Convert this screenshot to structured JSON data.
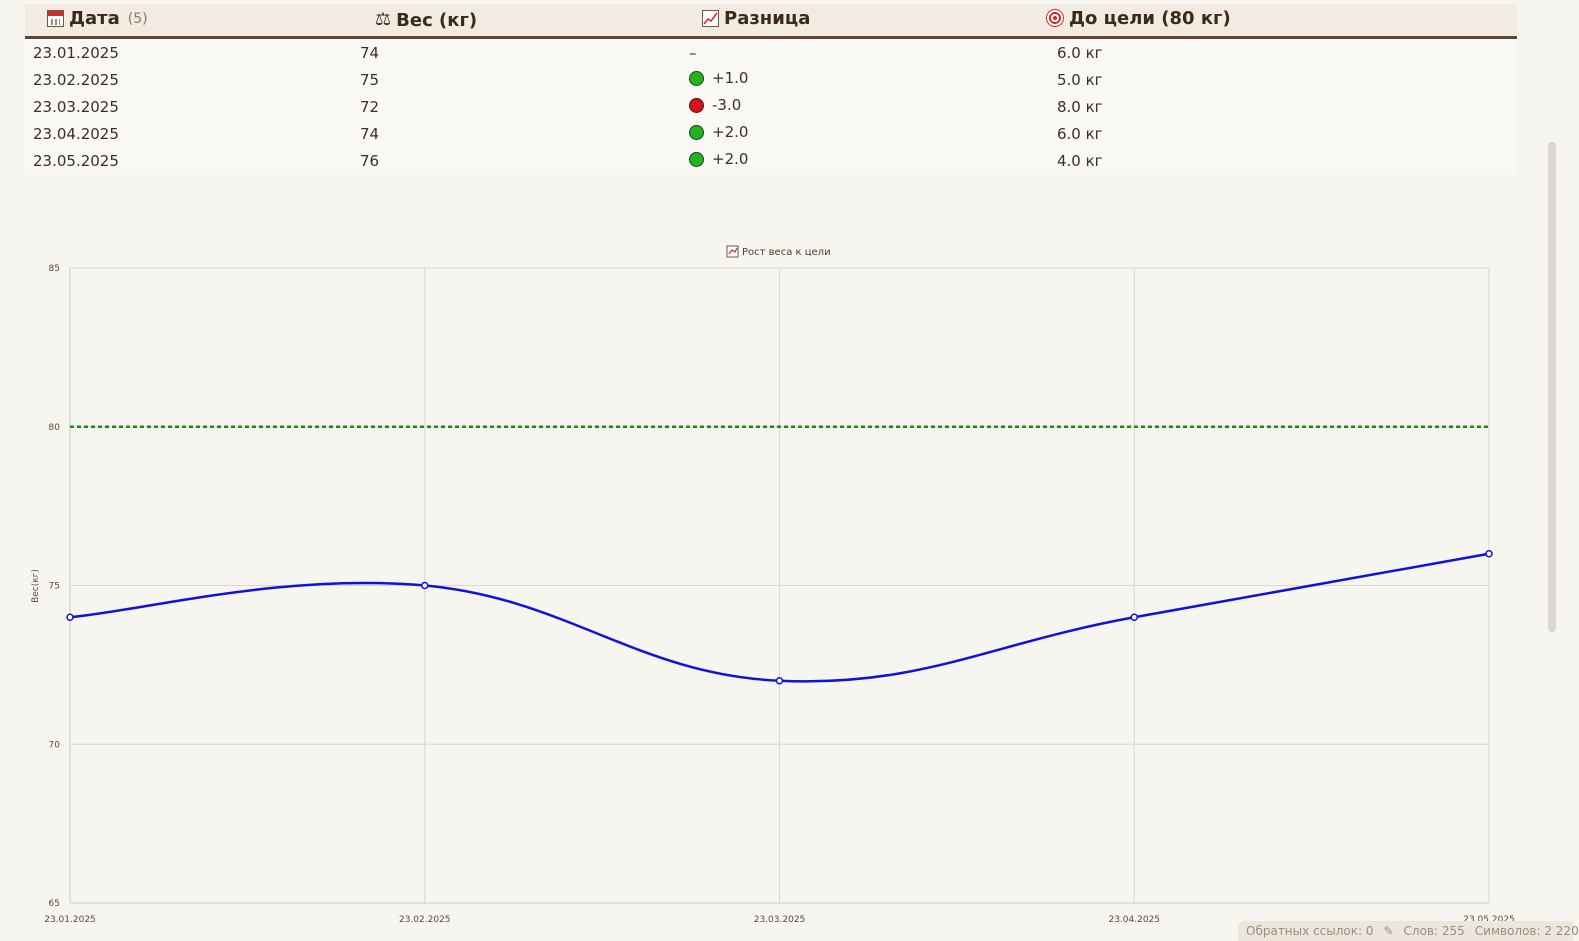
{
  "table": {
    "headers": {
      "date": "Дата",
      "date_count": "(5)",
      "weight": "Вес (кг)",
      "diff": "Разница",
      "goal": "До цели (80 кг)"
    },
    "rows": [
      {
        "date": "23.01.2025",
        "weight": "74",
        "diff": "–",
        "diff_status": "none",
        "goal": "6.0 кг"
      },
      {
        "date": "23.02.2025",
        "weight": "75",
        "diff": "+1.0",
        "diff_status": "up",
        "goal": "5.0 кг"
      },
      {
        "date": "23.03.2025",
        "weight": "72",
        "diff": "-3.0",
        "diff_status": "down",
        "goal": "8.0 кг"
      },
      {
        "date": "23.04.2025",
        "weight": "74",
        "diff": "+2.0",
        "diff_status": "up",
        "goal": "6.0 кг"
      },
      {
        "date": "23.05.2025",
        "weight": "76",
        "diff": "+2.0",
        "diff_status": "up",
        "goal": "4.0 кг"
      }
    ]
  },
  "status_colors": {
    "up": "#21b41e",
    "down": "#d7101c"
  },
  "chart_data": {
    "type": "line",
    "legend": "Рост веса к цели",
    "legend_position": "top-center",
    "ylabel": "Вес(кг)",
    "xlabel": "",
    "ylim": [
      65,
      85
    ],
    "yticks": [
      "85",
      "80",
      "75",
      "70",
      "65"
    ],
    "categories": [
      "23.01.2025",
      "23.02.2025",
      "23.03.2025",
      "23.04.2025",
      "23.05.2025"
    ],
    "series": [
      {
        "name": "Рост веса к цели",
        "values": [
          74,
          75,
          72,
          74,
          76
        ],
        "color": "#1010e0",
        "smooth": true
      }
    ],
    "target_line": {
      "value": 80,
      "color": "#1a8a1a",
      "style": "dotted"
    },
    "grid": true
  },
  "status_bar": {
    "backlinks": "Обратных ссылок: 0",
    "words": "Слов: 255",
    "chars": "Символов: 2 220"
  }
}
